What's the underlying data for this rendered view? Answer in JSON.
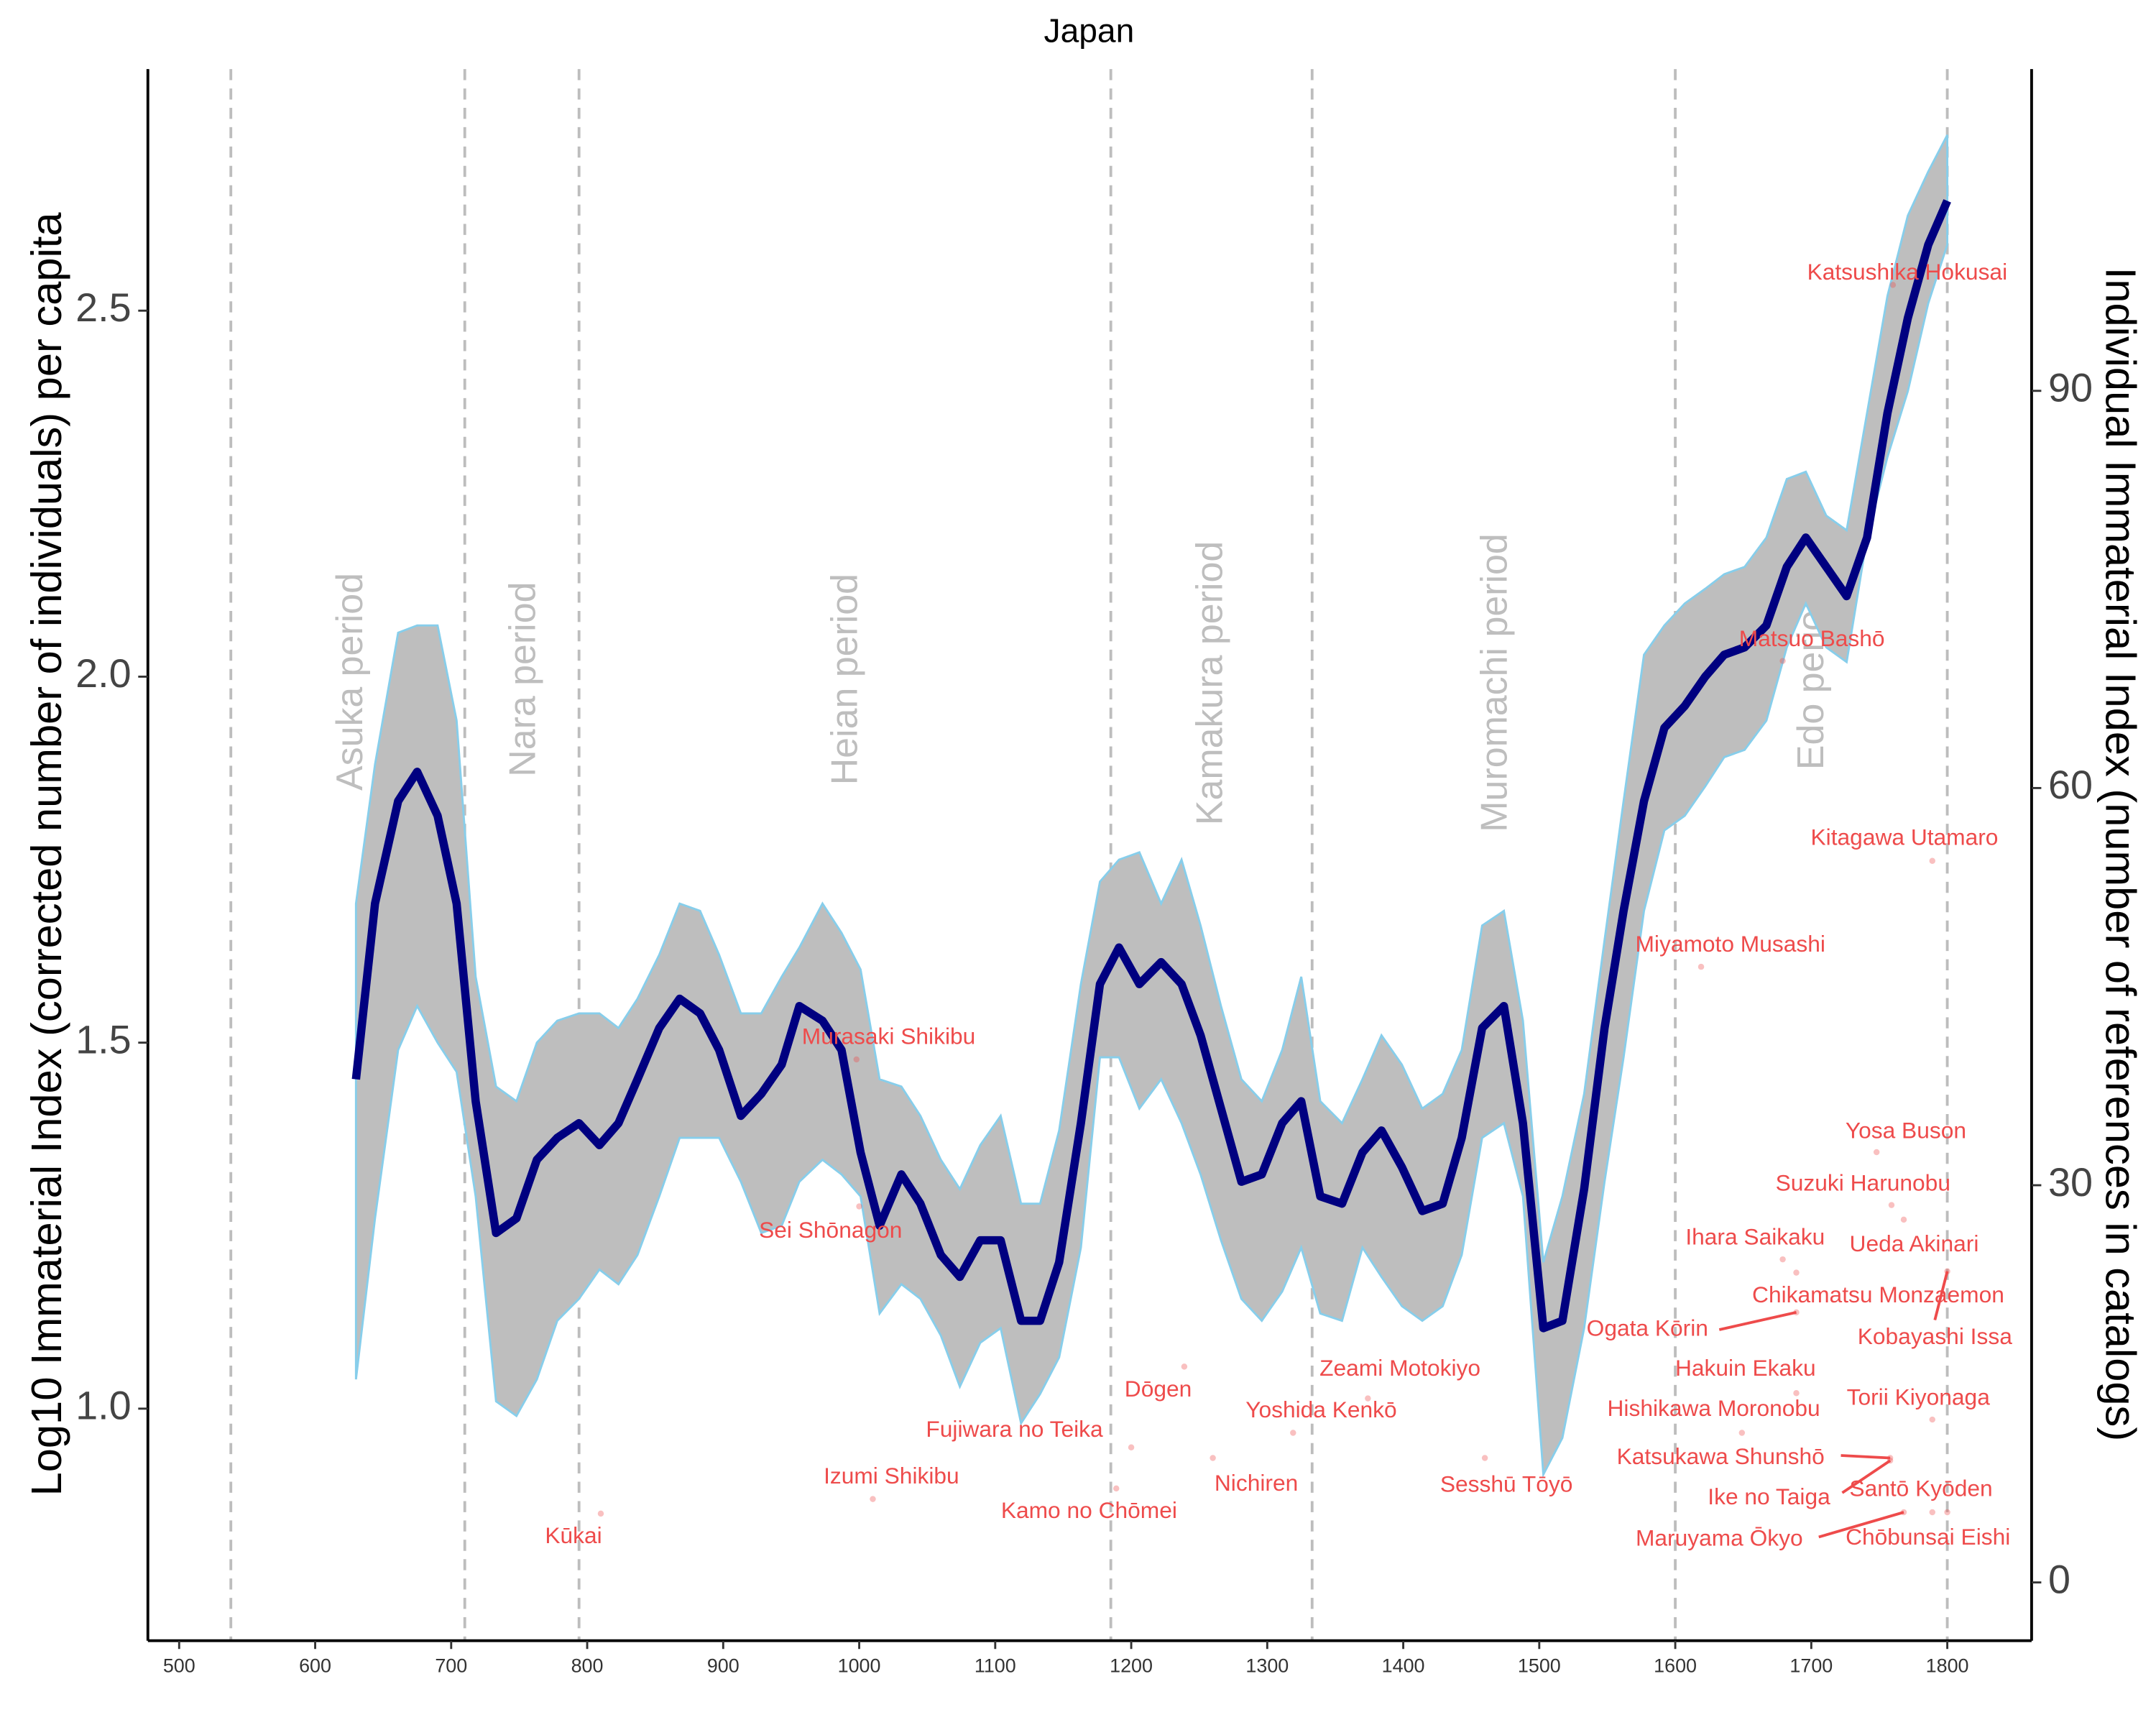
{
  "chart_data": {
    "type": "line",
    "title": "Japan",
    "ylabel": "Log10 Immaterial Index (corrected number of individuals) per capita",
    "y2label": "Individual Immaterial Index (number of references in catalogs)",
    "xlim": [
      477,
      1862
    ],
    "ylim": [
      0.683,
      2.83
    ],
    "y2lim": [
      -4.4,
      114.3
    ],
    "xticks": [
      500,
      600,
      700,
      800,
      900,
      1000,
      1100,
      1200,
      1300,
      1400,
      1500,
      1600,
      1700,
      1800
    ],
    "yticks": [
      {
        "value": 1.0,
        "label": "1.0"
      },
      {
        "value": 1.5,
        "label": "1.5"
      },
      {
        "value": 2.0,
        "label": "2.0"
      },
      {
        "value": 2.5,
        "label": "2.5"
      }
    ],
    "y2ticks": [
      0,
      30,
      60,
      90
    ],
    "grid": false,
    "color": "#000080",
    "band_color": "#bebebe",
    "band_edge_color": "#87ceeb",
    "annotation_color": "#ee4b4b",
    "period_color": "#bebebe",
    "x": [
      630,
      644,
      661,
      675,
      690,
      704,
      718,
      733,
      748,
      763,
      778,
      794,
      809,
      823,
      837,
      853,
      868,
      883,
      897,
      913,
      928,
      943,
      956,
      973,
      987,
      1001,
      1015,
      1031,
      1045,
      1060,
      1074,
      1089,
      1104,
      1119,
      1133,
      1147,
      1163,
      1177,
      1191,
      1206,
      1222,
      1237,
      1251,
      1266,
      1281,
      1296,
      1311,
      1325,
      1339,
      1355,
      1370,
      1384,
      1399,
      1414,
      1429,
      1443,
      1458,
      1474,
      1488,
      1503,
      1517,
      1533,
      1548,
      1562,
      1577,
      1592,
      1607,
      1622,
      1636,
      1651,
      1667,
      1682,
      1696,
      1711,
      1726,
      1741,
      1756,
      1771,
      1786,
      1800
    ],
    "values": [
      1.45,
      1.69,
      1.83,
      1.87,
      1.81,
      1.69,
      1.42,
      1.24,
      1.26,
      1.34,
      1.37,
      1.39,
      1.36,
      1.39,
      1.45,
      1.52,
      1.56,
      1.54,
      1.49,
      1.4,
      1.43,
      1.47,
      1.55,
      1.53,
      1.49,
      1.35,
      1.25,
      1.32,
      1.28,
      1.21,
      1.18,
      1.23,
      1.23,
      1.12,
      1.12,
      1.2,
      1.39,
      1.58,
      1.63,
      1.58,
      1.61,
      1.58,
      1.51,
      1.41,
      1.31,
      1.32,
      1.39,
      1.42,
      1.29,
      1.28,
      1.35,
      1.38,
      1.33,
      1.27,
      1.28,
      1.37,
      1.52,
      1.55,
      1.39,
      1.11,
      1.12,
      1.3,
      1.52,
      1.68,
      1.83,
      1.93,
      1.96,
      2.0,
      2.03,
      2.04,
      2.07,
      2.15,
      2.19,
      2.15,
      2.11,
      2.19,
      2.36,
      2.49,
      2.59,
      2.65
    ],
    "upper": [
      1.69,
      1.88,
      2.06,
      2.07,
      2.07,
      1.94,
      1.59,
      1.44,
      1.42,
      1.5,
      1.53,
      1.54,
      1.54,
      1.52,
      1.56,
      1.62,
      1.69,
      1.68,
      1.62,
      1.54,
      1.54,
      1.59,
      1.63,
      1.69,
      1.65,
      1.6,
      1.45,
      1.44,
      1.4,
      1.34,
      1.3,
      1.36,
      1.4,
      1.28,
      1.28,
      1.38,
      1.58,
      1.72,
      1.75,
      1.76,
      1.69,
      1.75,
      1.66,
      1.55,
      1.45,
      1.42,
      1.49,
      1.59,
      1.42,
      1.39,
      1.45,
      1.51,
      1.47,
      1.41,
      1.43,
      1.49,
      1.66,
      1.68,
      1.53,
      1.2,
      1.29,
      1.43,
      1.64,
      1.83,
      2.03,
      2.07,
      2.1,
      2.12,
      2.14,
      2.15,
      2.19,
      2.27,
      2.28,
      2.22,
      2.2,
      2.36,
      2.52,
      2.63,
      2.69,
      2.74
    ],
    "lower": [
      1.04,
      1.26,
      1.49,
      1.55,
      1.5,
      1.46,
      1.29,
      1.01,
      0.99,
      1.04,
      1.12,
      1.15,
      1.19,
      1.17,
      1.21,
      1.29,
      1.37,
      1.37,
      1.37,
      1.31,
      1.24,
      1.25,
      1.31,
      1.34,
      1.32,
      1.29,
      1.13,
      1.17,
      1.15,
      1.1,
      1.03,
      1.09,
      1.11,
      0.98,
      1.02,
      1.07,
      1.22,
      1.48,
      1.48,
      1.41,
      1.45,
      1.39,
      1.32,
      1.23,
      1.15,
      1.12,
      1.16,
      1.22,
      1.13,
      1.12,
      1.22,
      1.18,
      1.14,
      1.12,
      1.14,
      1.21,
      1.37,
      1.39,
      1.29,
      0.91,
      0.96,
      1.11,
      1.31,
      1.48,
      1.68,
      1.79,
      1.81,
      1.85,
      1.89,
      1.9,
      1.94,
      2.04,
      2.1,
      2.04,
      2.02,
      2.19,
      2.3,
      2.39,
      2.51,
      2.59
    ],
    "vlines": [
      538,
      710,
      794,
      1185,
      1333,
      1600,
      1800
    ],
    "periods": [
      "Asuka period",
      "Nara period",
      "Heian period",
      "Kamakura period",
      "Muromachi period",
      "Edo period"
    ],
    "annotations": [
      {
        "label": "Katsushika Hokusai",
        "x": 1760,
        "y": 98
      },
      {
        "label": "Matsuo Bashō",
        "x": 1679,
        "y": 69.6
      },
      {
        "label": "Kitagawa Utamaro",
        "x": 1789,
        "y": 54.5
      },
      {
        "label": "Miyamoto Musashi",
        "x": 1619,
        "y": 46.5
      },
      {
        "label": "Murasaki Shikibu",
        "x": 998,
        "y": 39.5
      },
      {
        "label": "Yosa Buson",
        "x": 1748,
        "y": 32.5
      },
      {
        "label": "Suzuki Harunobu",
        "x": 1759,
        "y": 28.5
      },
      {
        "label": "Sei Shōnagon",
        "x": 1000,
        "y": 28.4
      },
      {
        "label": "Ihara Saikaku",
        "x": 1679,
        "y": 24.4
      },
      {
        "label": "Ueda Akinari",
        "x": 1768,
        "y": 27.4
      },
      {
        "label": "Chikamatsu Monzaemon",
        "x": 1689,
        "y": 23.4
      },
      {
        "label": "Ogata Kōrin",
        "x": 1689,
        "y": 20.4
      },
      {
        "label": "Kobayashi Issa",
        "x": 1800,
        "y": 23.5
      },
      {
        "label": "Zeami Motokiyo",
        "x": 1374,
        "y": 13.9
      },
      {
        "label": "Hakuin Ekaku",
        "x": 1689,
        "y": 14.3
      },
      {
        "label": "Dōgen",
        "x": 1239,
        "y": 16.3
      },
      {
        "label": "Torii Kiyonaga",
        "x": 1789,
        "y": 12.3
      },
      {
        "label": "Hishikawa Moronobu",
        "x": 1649,
        "y": 11.3
      },
      {
        "label": "Yoshida Kenkō",
        "x": 1319,
        "y": 11.3
      },
      {
        "label": "Fujiwara no Teika",
        "x": 1200,
        "y": 10.2
      },
      {
        "label": "Katsukawa Shunshō",
        "x": 1758,
        "y": 9.4
      },
      {
        "label": "Izumi Shikibu",
        "x": 1010,
        "y": 6.3
      },
      {
        "label": "Nichiren",
        "x": 1260,
        "y": 9.4
      },
      {
        "label": "Sesshū Tōyō",
        "x": 1460,
        "y": 9.4
      },
      {
        "label": "Santō Kyōden",
        "x": 1789,
        "y": 5.3
      },
      {
        "label": "Ike no Taiga",
        "x": 1758,
        "y": 9.2
      },
      {
        "label": "Kamo no Chōmei",
        "x": 1189,
        "y": 7.1
      },
      {
        "label": "Kūkai",
        "x": 810,
        "y": 5.2
      },
      {
        "label": "Maruyama Ōkyo",
        "x": 1768,
        "y": 5.3
      },
      {
        "label": "Chōbunsai Eishi",
        "x": 1800,
        "y": 5.3
      }
    ]
  }
}
